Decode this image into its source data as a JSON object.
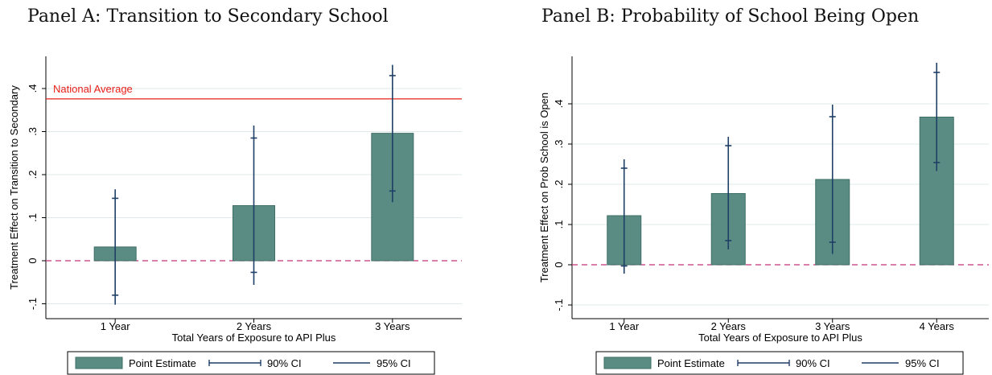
{
  "chart_data": [
    {
      "type": "bar",
      "title": "Panel A: Transition to Secondary School",
      "xlabel": "Total Years of Exposure to API Plus",
      "ylabel": "Treatment Effect on Transition to Secondary",
      "categories": [
        "1 Year",
        "2 Years",
        "3 Years"
      ],
      "yticks": [
        -0.1,
        0,
        0.1,
        0.2,
        0.3,
        0.4
      ],
      "ytick_labels": [
        "-.1",
        "0",
        ".1",
        ".2",
        ".3",
        ".4"
      ],
      "ylim": [
        -0.13,
        0.475
      ],
      "series": [
        {
          "name": "Point Estimate",
          "values": [
            0.032,
            0.128,
            0.296
          ],
          "ci90": [
            [
              -0.08,
              0.145
            ],
            [
              -0.027,
              0.285
            ],
            [
              0.162,
              0.43
            ]
          ],
          "ci95": [
            [
              -0.102,
              0.166
            ],
            [
              -0.056,
              0.314
            ],
            [
              0.136,
              0.455
            ]
          ]
        }
      ],
      "reference_lines": [
        {
          "label": "National Average",
          "value": 0.376,
          "color": "#e8201a"
        },
        {
          "label": "",
          "value": 0,
          "color": "#c8327a",
          "style": "dashed"
        }
      ],
      "legend": [
        "Point Estimate",
        "90% CI",
        "95% CI"
      ],
      "legend_position": "bottom",
      "grid": true
    },
    {
      "type": "bar",
      "title": "Panel B: Probability of School Being Open",
      "xlabel": "Total Years of Exposure to API Plus",
      "ylabel": "Treatment Effect on Prob School is Open",
      "categories": [
        "1 Year",
        "2 Years",
        "3 Years",
        "4 Years"
      ],
      "yticks": [
        -0.1,
        0,
        0.1,
        0.2,
        0.3,
        0.4
      ],
      "ytick_labels": [
        "-.1",
        "0",
        ".1",
        ".2",
        ".3",
        ".4"
      ],
      "ylim": [
        -0.12,
        0.515
      ],
      "series": [
        {
          "name": "Point Estimate",
          "values": [
            0.122,
            0.177,
            0.212,
            0.367
          ],
          "ci90": [
            [
              -0.003,
              0.24
            ],
            [
              0.06,
              0.296
            ],
            [
              0.056,
              0.368
            ],
            [
              0.254,
              0.478
            ]
          ],
          "ci95": [
            [
              -0.022,
              0.262
            ],
            [
              0.038,
              0.318
            ],
            [
              0.027,
              0.398
            ],
            [
              0.233,
              0.502
            ]
          ]
        }
      ],
      "reference_lines": [
        {
          "label": "",
          "value": 0,
          "color": "#c8327a",
          "style": "dashed"
        }
      ],
      "legend": [
        "Point Estimate",
        "90% CI",
        "95% CI"
      ],
      "legend_position": "bottom",
      "grid": true
    }
  ],
  "colors": {
    "bar_fill": "#5a8c84",
    "bar_stroke": "#3f6e66",
    "ci": "#1e3f66",
    "grid": "#dfe8ea",
    "axis": "#000000"
  }
}
